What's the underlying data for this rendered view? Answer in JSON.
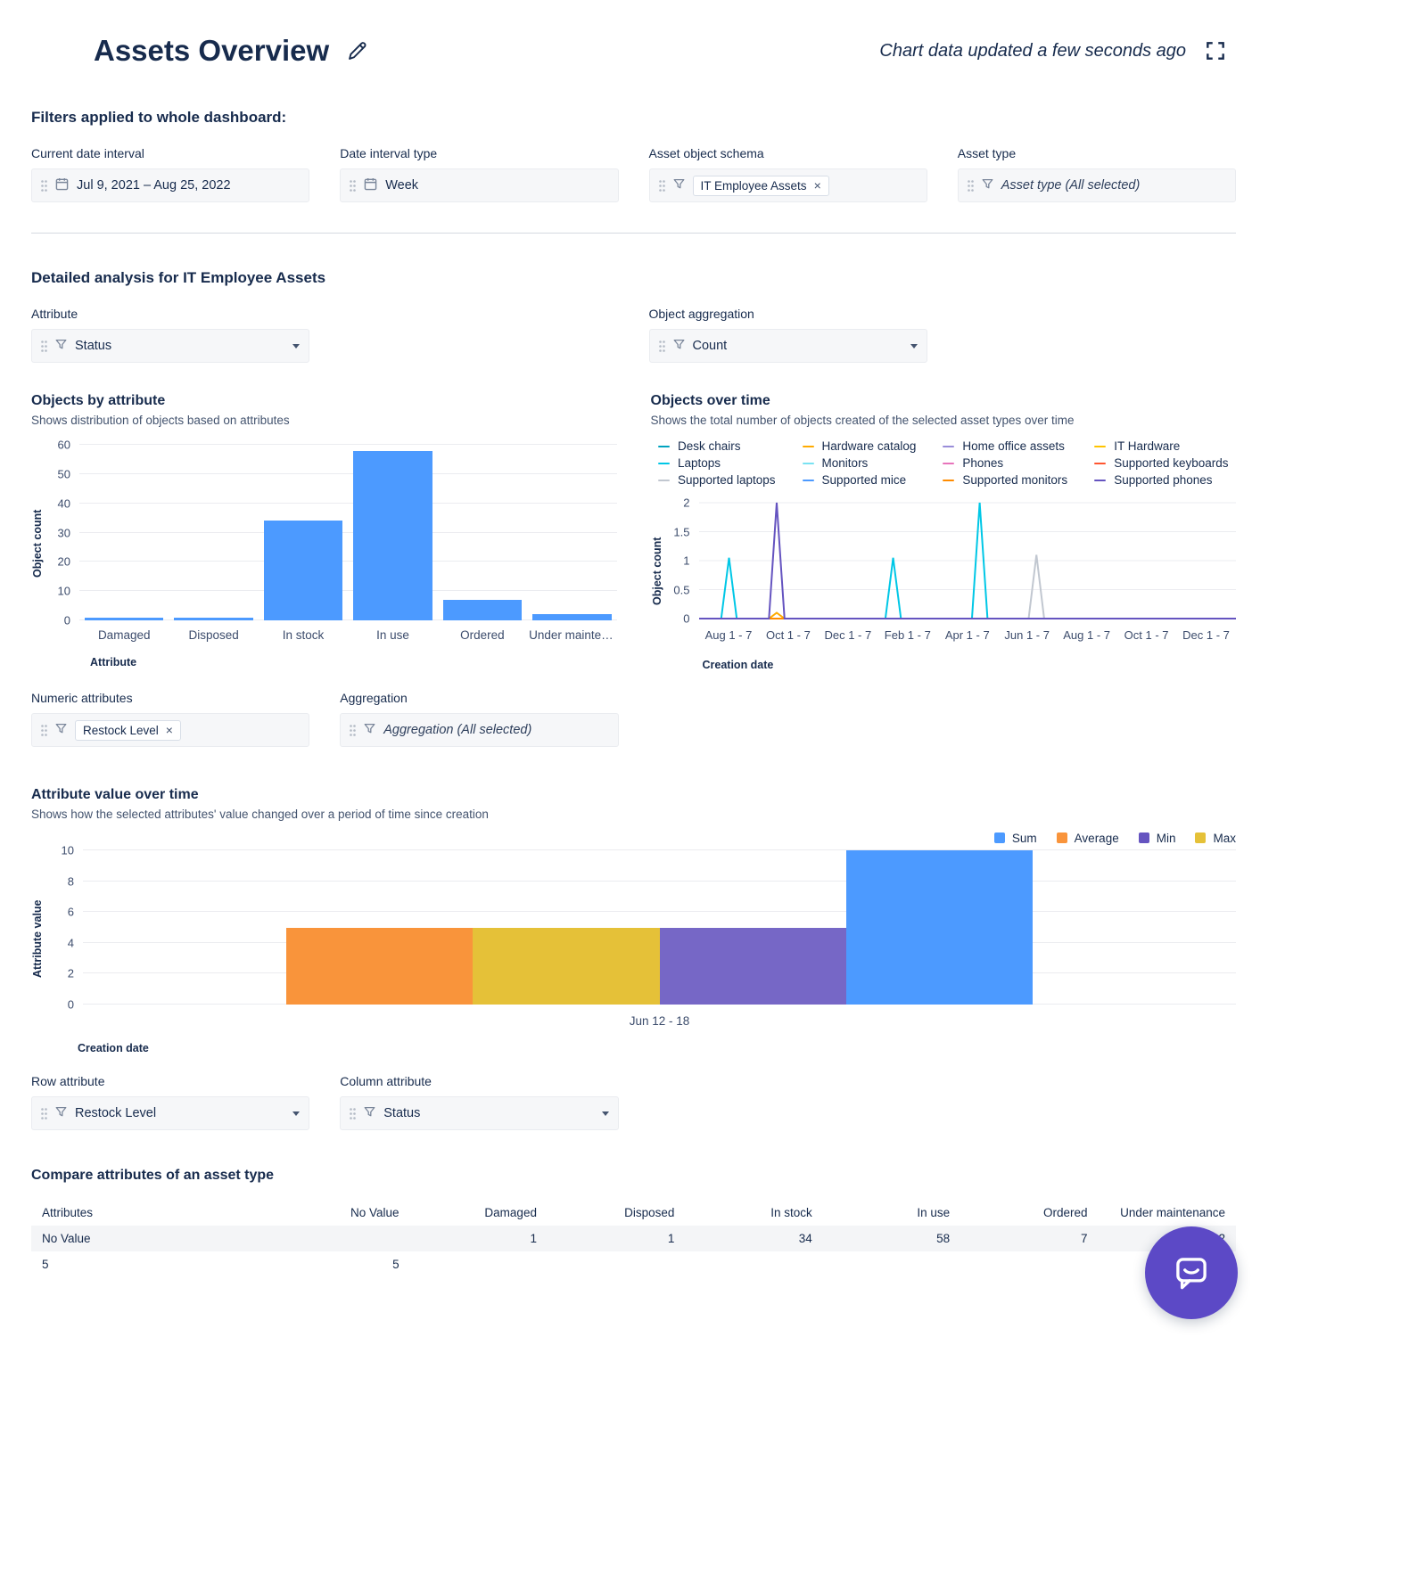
{
  "accent": {
    "bar_blue": "#4C9AFF",
    "text_dark": "#172B4D",
    "text_muted": "#44546F",
    "chat_bubble": "#5C49C6"
  },
  "header": {
    "title": "Assets Overview",
    "updated_text": "Chart data updated a few seconds ago"
  },
  "filters": {
    "heading": "Filters applied to whole dashboard:",
    "date_interval": {
      "label": "Current date interval",
      "value": "Jul 9, 2021  –  Aug 25, 2022"
    },
    "interval_type": {
      "label": "Date interval type",
      "value": "Week"
    },
    "object_schema": {
      "label": "Asset object schema",
      "chip": "IT Employee Assets",
      "chip_remove": "×"
    },
    "asset_type": {
      "label": "Asset type",
      "value": "Asset type (All selected)"
    }
  },
  "analysis": {
    "heading": "Detailed analysis for IT Employee Assets",
    "attribute_select": {
      "label": "Attribute",
      "value": "Status"
    },
    "object_aggregation_select": {
      "label": "Object aggregation",
      "value": "Count"
    },
    "numeric_attributes": {
      "label": "Numeric attributes",
      "chip": "Restock Level",
      "chip_remove": "×"
    },
    "aggregation_filter": {
      "label": "Aggregation",
      "value": "Aggregation (All selected)"
    },
    "row_attribute_select": {
      "label": "Row attribute",
      "value": "Restock Level"
    },
    "column_attribute_select": {
      "label": "Column attribute",
      "value": "Status"
    }
  },
  "chart_data": [
    {
      "id": "objects-by-attribute",
      "type": "bar",
      "title": "Objects by attribute",
      "subtitle": "Shows distribution of objects based on attributes",
      "ylabel": "Object count",
      "xlabel": "Attribute",
      "ylim": [
        0,
        60
      ],
      "yticks": [
        0,
        10,
        20,
        30,
        40,
        50,
        60
      ],
      "categories": [
        "Damaged",
        "Disposed",
        "In stock",
        "In use",
        "Ordered",
        "Under mainten..."
      ],
      "values": [
        1,
        1,
        34,
        58,
        7,
        2
      ],
      "bar_color": "#4C9AFF"
    },
    {
      "id": "objects-over-time",
      "type": "line",
      "title": "Objects over time",
      "subtitle": "Shows the total number of objects created of the selected asset types over time",
      "ylabel": "Object count",
      "xlabel": "Creation date",
      "ylim": [
        0,
        2
      ],
      "yticks": [
        0,
        0.5,
        1,
        1.5,
        2
      ],
      "xticks": [
        "Aug 1 - 7",
        "Oct 1 - 7",
        "Dec 1 - 7",
        "Feb 1 - 7",
        "Apr 1 - 7",
        "Jun 1 - 7",
        "Aug 1 - 7",
        "Oct 1 - 7",
        "Dec 1 - 7"
      ],
      "x_domain": [
        -0.5,
        8.5
      ],
      "series": [
        {
          "name": "Desk chairs",
          "color": "#00A3BF",
          "spikes": []
        },
        {
          "name": "Hardware catalog",
          "color": "#FFAB00",
          "spikes": [
            [
              0.8,
              0.1
            ]
          ]
        },
        {
          "name": "Home office assets",
          "color": "#998DD9",
          "spikes": []
        },
        {
          "name": "IT Hardware",
          "color": "#FFC400",
          "spikes": []
        },
        {
          "name": "Laptops",
          "color": "#00C7E6",
          "spikes": [
            [
              0,
              1.05
            ],
            [
              2.75,
              1.05
            ],
            [
              4.2,
              2
            ]
          ]
        },
        {
          "name": "Monitors",
          "color": "#79E2F2",
          "spikes": []
        },
        {
          "name": "Phones",
          "color": "#E774BB",
          "spikes": []
        },
        {
          "name": "Supported keyboards",
          "color": "#FF5630",
          "spikes": []
        },
        {
          "name": "Supported laptops",
          "color": "#C1C7D0",
          "spikes": [
            [
              5.15,
              1.1
            ]
          ]
        },
        {
          "name": "Supported mice",
          "color": "#4C9AFF",
          "spikes": []
        },
        {
          "name": "Supported monitors",
          "color": "#FF8B00",
          "spikes": []
        },
        {
          "name": "Supported phones",
          "color": "#6554C0",
          "spikes": [
            [
              0.8,
              2
            ]
          ]
        }
      ]
    },
    {
      "id": "attribute-value-over-time",
      "type": "bar",
      "title": "Attribute value over time",
      "subtitle": "Shows how the selected attributes' value changed over a period of time since creation",
      "ylabel": "Attribute value",
      "xlabel": "Creation date",
      "ylim": [
        0,
        10
      ],
      "yticks": [
        0,
        2,
        4,
        6,
        8,
        10
      ],
      "categories": [
        "Jun 12 - 18"
      ],
      "legend": [
        {
          "name": "Sum",
          "color": "#4C9AFF"
        },
        {
          "name": "Average",
          "color": "#F9943B"
        },
        {
          "name": "Min",
          "color": "#6554C0"
        },
        {
          "name": "Max",
          "color": "#E5C138"
        }
      ],
      "bars": [
        {
          "name": "Average",
          "value": 5,
          "color": "#F9943B"
        },
        {
          "name": "Max",
          "value": 5,
          "color": "#E5C138"
        },
        {
          "name": "Min",
          "value": 5,
          "color": "#7667C6"
        },
        {
          "name": "Sum",
          "value": 10,
          "color": "#4C9AFF"
        }
      ]
    }
  ],
  "compare_table": {
    "heading": "Compare attributes of an asset type",
    "columns": [
      "Attributes",
      "No Value",
      "Damaged",
      "Disposed",
      "In stock",
      "In use",
      "Ordered",
      "Under maintenance"
    ],
    "rows": [
      [
        "No Value",
        "",
        "1",
        "1",
        "34",
        "58",
        "7",
        "2"
      ],
      [
        "5",
        "5",
        "",
        "",
        "",
        "",
        "",
        ""
      ]
    ]
  }
}
